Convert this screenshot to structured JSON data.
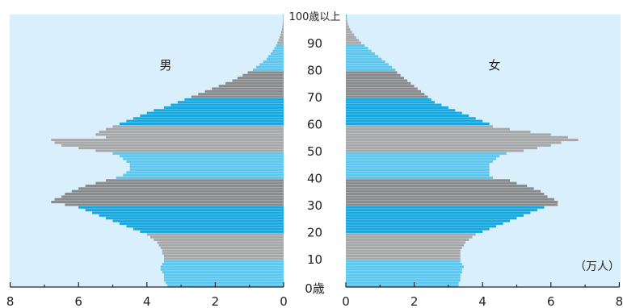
{
  "chart_data": {
    "type": "bar",
    "subtype": "population-pyramid",
    "title": "",
    "unit_label": "（万人）",
    "series": [
      {
        "name": "男",
        "side": "left"
      },
      {
        "name": "女",
        "side": "right"
      }
    ],
    "x_axis": {
      "min": 0,
      "max": 8,
      "ticks": [
        8,
        6,
        4,
        2,
        0
      ],
      "ticks_right": [
        0,
        2,
        4,
        6,
        8
      ]
    },
    "age_labels": [
      {
        "age": 0,
        "text": "0歳"
      },
      {
        "age": 10,
        "text": "10"
      },
      {
        "age": 20,
        "text": "20"
      },
      {
        "age": 30,
        "text": "30"
      },
      {
        "age": 40,
        "text": "40"
      },
      {
        "age": 50,
        "text": "50"
      },
      {
        "age": 60,
        "text": "60"
      },
      {
        "age": 70,
        "text": "70"
      },
      {
        "age": 80,
        "text": "80"
      },
      {
        "age": 90,
        "text": "90"
      },
      {
        "age": 100,
        "text": "100歳以上"
      }
    ],
    "ages": [
      0,
      1,
      2,
      3,
      4,
      5,
      6,
      7,
      8,
      9,
      10,
      11,
      12,
      13,
      14,
      15,
      16,
      17,
      18,
      19,
      20,
      21,
      22,
      23,
      24,
      25,
      26,
      27,
      28,
      29,
      30,
      31,
      32,
      33,
      34,
      35,
      36,
      37,
      38,
      39,
      40,
      41,
      42,
      43,
      44,
      45,
      46,
      47,
      48,
      49,
      50,
      51,
      52,
      53,
      54,
      55,
      56,
      57,
      58,
      59,
      60,
      61,
      62,
      63,
      64,
      65,
      66,
      67,
      68,
      69,
      70,
      71,
      72,
      73,
      74,
      75,
      76,
      77,
      78,
      79,
      80,
      81,
      82,
      83,
      84,
      85,
      86,
      87,
      88,
      89,
      90,
      91,
      92,
      93,
      94,
      95,
      96,
      97,
      98,
      99,
      100
    ],
    "male": [
      3.4,
      3.45,
      3.5,
      3.5,
      3.5,
      3.55,
      3.6,
      3.6,
      3.55,
      3.5,
      3.5,
      3.5,
      3.55,
      3.55,
      3.6,
      3.65,
      3.7,
      3.8,
      3.9,
      4.0,
      4.2,
      4.4,
      4.6,
      4.8,
      5.0,
      5.2,
      5.4,
      5.6,
      5.8,
      6.0,
      6.4,
      6.8,
      6.7,
      6.5,
      6.4,
      6.2,
      6.0,
      5.8,
      5.5,
      5.2,
      4.9,
      4.7,
      4.6,
      4.5,
      4.5,
      4.5,
      4.6,
      4.7,
      4.8,
      5.0,
      5.5,
      6.0,
      6.5,
      6.7,
      6.8,
      5.2,
      5.5,
      5.4,
      5.2,
      5.0,
      4.8,
      4.6,
      4.4,
      4.2,
      4.0,
      3.8,
      3.5,
      3.3,
      3.1,
      2.9,
      2.7,
      2.5,
      2.3,
      2.1,
      1.9,
      1.7,
      1.5,
      1.35,
      1.2,
      1.05,
      0.9,
      0.8,
      0.7,
      0.6,
      0.5,
      0.45,
      0.38,
      0.32,
      0.27,
      0.22,
      0.18,
      0.15,
      0.12,
      0.09,
      0.07,
      0.05,
      0.04,
      0.03,
      0.02,
      0.015,
      0.01
    ],
    "female": [
      3.3,
      3.3,
      3.35,
      3.35,
      3.35,
      3.4,
      3.4,
      3.45,
      3.4,
      3.35,
      3.35,
      3.35,
      3.35,
      3.35,
      3.4,
      3.45,
      3.5,
      3.6,
      3.7,
      3.8,
      4.0,
      4.2,
      4.4,
      4.6,
      4.8,
      5.0,
      5.2,
      5.4,
      5.6,
      5.8,
      6.2,
      6.2,
      6.1,
      5.9,
      5.8,
      5.7,
      5.5,
      5.3,
      5.0,
      4.8,
      4.3,
      4.2,
      4.2,
      4.2,
      4.2,
      4.2,
      4.3,
      4.4,
      4.5,
      4.7,
      5.2,
      5.6,
      6.0,
      6.3,
      6.8,
      6.5,
      6.0,
      5.4,
      4.8,
      4.3,
      4.2,
      4.0,
      3.8,
      3.6,
      3.4,
      3.2,
      3.0,
      2.8,
      2.6,
      2.5,
      2.4,
      2.3,
      2.2,
      2.1,
      2.0,
      1.9,
      1.8,
      1.7,
      1.6,
      1.5,
      1.45,
      1.35,
      1.25,
      1.15,
      1.05,
      0.95,
      0.85,
      0.75,
      0.65,
      0.55,
      0.45,
      0.38,
      0.3,
      0.24,
      0.18,
      0.13,
      0.09,
      0.06,
      0.04,
      0.03,
      0.02
    ]
  },
  "colors": {
    "panel_background": "#d9f0fc",
    "band_colors": [
      "#5cc8ef",
      "#a8a8a8",
      "#18a8e0",
      "#8a8a8a",
      "#5cc8ef",
      "#a8a8a8",
      "#18a8e0",
      "#8a8a8a",
      "#5cc8ef",
      "#a8a8a8",
      "#18a8e0"
    ]
  }
}
